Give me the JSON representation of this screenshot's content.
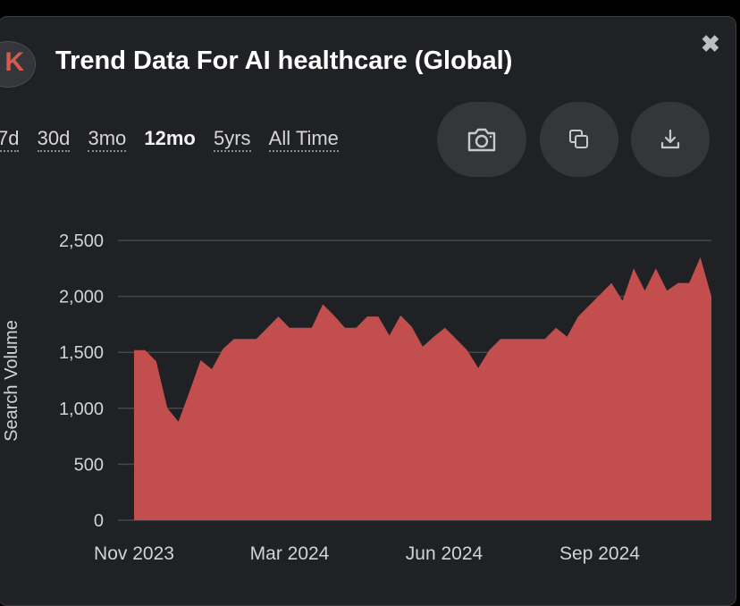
{
  "header": {
    "title": "Trend Data For AI healthcare (Global)",
    "logo_letter": "K"
  },
  "ranges": [
    "7d",
    "30d",
    "3mo",
    "12mo",
    "5yrs",
    "All Time"
  ],
  "active_range": "12mo",
  "actions": {
    "screenshot_icon": "camera-icon",
    "copy_icon": "copy-icon",
    "download_icon": "download-icon",
    "close_icon": "close-icon"
  },
  "colors": {
    "fill": "#c24f4d",
    "panel": "#202124",
    "button": "#35363a"
  },
  "chart_data": {
    "type": "area",
    "ylabel": "Search Volume",
    "xlabel": "",
    "ylim": [
      0,
      2500
    ],
    "yticks": [
      "0",
      "500",
      "1,000",
      "1,500",
      "2,000",
      "2,500"
    ],
    "xticks": [
      "Nov 2023",
      "Mar 2024",
      "Jun 2024",
      "Sep 2024"
    ],
    "grid": true,
    "series": [
      {
        "values": [
          1520,
          1520,
          1420,
          1000,
          880,
          1150,
          1430,
          1350,
          1530,
          1620,
          1620,
          1620,
          1720,
          1820,
          1720,
          1720,
          1720,
          1930,
          1830,
          1720,
          1720,
          1820,
          1820,
          1650,
          1830,
          1730,
          1550,
          1640,
          1720,
          1620,
          1520,
          1360,
          1520,
          1620,
          1620,
          1620,
          1620,
          1620,
          1720,
          1640,
          1820,
          1920,
          2020,
          2120,
          1960,
          2250,
          2050,
          2250,
          2050,
          2120,
          2120,
          2350,
          2000
        ]
      }
    ]
  }
}
